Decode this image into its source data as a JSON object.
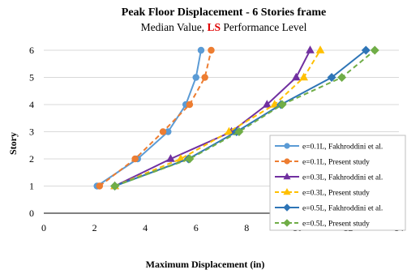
{
  "chart_data": {
    "type": "line",
    "title_main": "Peak Floor Displacement - 6 Stories frame",
    "title_sub_prefix": "Median Value,",
    "title_sub_highlight": "LS",
    "title_sub_suffix": "Performance Level",
    "highlight_color": "#e00000",
    "xlabel": "Maximum Displacement (in)",
    "ylabel": "Story",
    "xlim": [
      0,
      14
    ],
    "ylim": [
      0,
      6
    ],
    "xticks": [
      0,
      2,
      4,
      6,
      8,
      10,
      12,
      14
    ],
    "yticks": [
      0,
      1,
      2,
      3,
      4,
      5,
      6
    ],
    "grid": "horizontal",
    "legend_position": "right",
    "series": [
      {
        "name": "e=0.1L, Fakhroddini et al.",
        "color": "#5b9bd5",
        "dash": "solid",
        "marker": "circle",
        "points": [
          [
            2.1,
            1
          ],
          [
            3.7,
            2
          ],
          [
            4.9,
            3
          ],
          [
            5.6,
            4
          ],
          [
            6.0,
            5
          ],
          [
            6.2,
            6
          ]
        ]
      },
      {
        "name": "e=0.1L, Present study",
        "color": "#ed7d31",
        "dash": "dashed",
        "marker": "circle",
        "points": [
          [
            2.2,
            1
          ],
          [
            3.6,
            2
          ],
          [
            4.7,
            3
          ],
          [
            5.75,
            4
          ],
          [
            6.35,
            5
          ],
          [
            6.6,
            6
          ]
        ]
      },
      {
        "name": "e=0.3L, Fakhroddini et al.",
        "color": "#7030a0",
        "dash": "solid",
        "marker": "triangle",
        "points": [
          [
            2.8,
            1
          ],
          [
            5.0,
            2
          ],
          [
            7.4,
            3
          ],
          [
            8.8,
            4
          ],
          [
            9.95,
            5
          ],
          [
            10.5,
            6
          ]
        ]
      },
      {
        "name": "e=0.3L, Present study",
        "color": "#ffc000",
        "dash": "dashed",
        "marker": "triangle",
        "points": [
          [
            2.8,
            1
          ],
          [
            5.4,
            2
          ],
          [
            7.3,
            3
          ],
          [
            9.1,
            4
          ],
          [
            10.25,
            5
          ],
          [
            10.9,
            6
          ]
        ]
      },
      {
        "name": "e=0.5L, Fakhroddini et al.",
        "color": "#2e75b6",
        "dash": "solid",
        "marker": "diamond",
        "points": [
          [
            2.8,
            1
          ],
          [
            5.7,
            2
          ],
          [
            7.6,
            3
          ],
          [
            9.35,
            4
          ],
          [
            11.35,
            5
          ],
          [
            12.7,
            6
          ]
        ]
      },
      {
        "name": "e=0.5L, Present study",
        "color": "#70ad47",
        "dash": "dashed",
        "marker": "diamond",
        "points": [
          [
            2.8,
            1
          ],
          [
            5.75,
            2
          ],
          [
            7.7,
            3
          ],
          [
            9.4,
            4
          ],
          [
            11.75,
            5
          ],
          [
            13.05,
            6
          ]
        ]
      }
    ]
  }
}
